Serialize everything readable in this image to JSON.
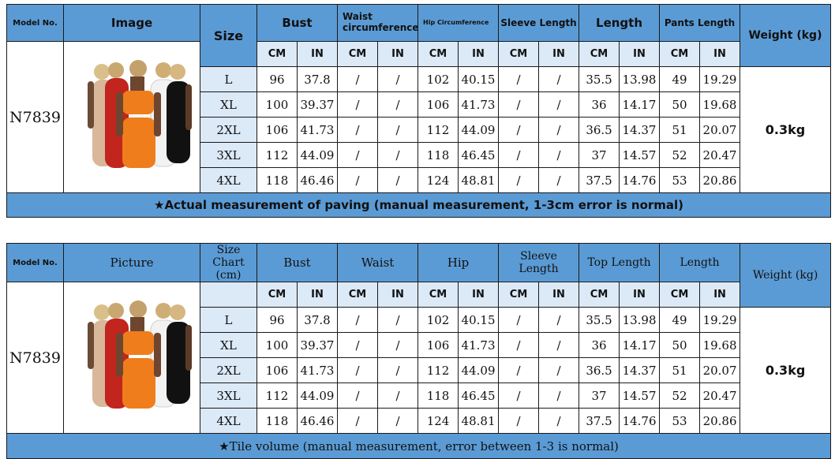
{
  "tables": [
    {
      "headers": {
        "model": "Model No.",
        "image": "Image",
        "size": "Size",
        "bust": "Bust",
        "waist": "Waist circumference",
        "hip": "Hip Circumference",
        "sleeve": "Sleeve Length",
        "length": "Length",
        "pants": "Pants Length",
        "weight": "Weight (kg)"
      },
      "units": [
        "CM",
        "IN",
        "CM",
        "IN",
        "CM",
        "IN",
        "CM",
        "IN",
        "CM",
        "IN",
        "CM",
        "IN"
      ],
      "model_no": "N7839",
      "weight": "0.3kg",
      "rows": [
        {
          "size": "L",
          "cells": [
            "96",
            "37.8",
            "/",
            "/",
            "102",
            "40.15",
            "/",
            "/",
            "35.5",
            "13.98",
            "49",
            "19.29"
          ]
        },
        {
          "size": "XL",
          "cells": [
            "100",
            "39.37",
            "/",
            "/",
            "106",
            "41.73",
            "/",
            "/",
            "36",
            "14.17",
            "50",
            "19.68"
          ]
        },
        {
          "size": "2XL",
          "cells": [
            "106",
            "41.73",
            "/",
            "/",
            "112",
            "44.09",
            "/",
            "/",
            "36.5",
            "14.37",
            "51",
            "20.07"
          ]
        },
        {
          "size": "3XL",
          "cells": [
            "112",
            "44.09",
            "/",
            "/",
            "118",
            "46.45",
            "/",
            "/",
            "37",
            "14.57",
            "52",
            "20.47"
          ]
        },
        {
          "size": "4XL",
          "cells": [
            "118",
            "46.46",
            "/",
            "/",
            "124",
            "48.81",
            "/",
            "/",
            "37.5",
            "14.76",
            "53",
            "20.86"
          ]
        }
      ],
      "footer": "★Actual measurement of paving (manual measurement, 1-3cm error is normal)"
    },
    {
      "headers": {
        "model": "Model No.",
        "image": "Picture",
        "size": "Size Chart (cm)",
        "bust": "Bust",
        "waist": "Waist",
        "hip": "Hip",
        "sleeve": "Sleeve Length",
        "length": "Top Length",
        "pants": "Length",
        "weight": "Weight (kg)"
      },
      "units": [
        "CM",
        "IN",
        "CM",
        "IN",
        "CM",
        "IN",
        "CM",
        "IN",
        "CM",
        "IN",
        "CM",
        "IN"
      ],
      "model_no": "N7839",
      "weight": "0.3kg",
      "rows": [
        {
          "size": "L",
          "cells": [
            "96",
            "37.8",
            "/",
            "/",
            "102",
            "40.15",
            "/",
            "/",
            "35.5",
            "13.98",
            "49",
            "19.29"
          ]
        },
        {
          "size": "XL",
          "cells": [
            "100",
            "39.37",
            "/",
            "/",
            "106",
            "41.73",
            "/",
            "/",
            "36",
            "14.17",
            "50",
            "19.68"
          ]
        },
        {
          "size": "2XL",
          "cells": [
            "106",
            "41.73",
            "/",
            "/",
            "112",
            "44.09",
            "/",
            "/",
            "36.5",
            "14.37",
            "51",
            "20.07"
          ]
        },
        {
          "size": "3XL",
          "cells": [
            "112",
            "44.09",
            "/",
            "/",
            "118",
            "46.45",
            "/",
            "/",
            "37",
            "14.57",
            "52",
            "20.47"
          ]
        },
        {
          "size": "4XL",
          "cells": [
            "118",
            "46.46",
            "/",
            "/",
            "124",
            "48.81",
            "/",
            "/",
            "37.5",
            "14.76",
            "53",
            "20.86"
          ]
        }
      ],
      "footer": "★Tile volume (manual measurement, error between 1-3 is normal)"
    }
  ],
  "colors": {
    "header_blue": "#5b9bd5",
    "subheader_light_blue": "#dce9f7",
    "product_colors": [
      "#d8b79a",
      "#c1251d",
      "#f07d1b",
      "#f2f2f2",
      "#111111"
    ]
  }
}
